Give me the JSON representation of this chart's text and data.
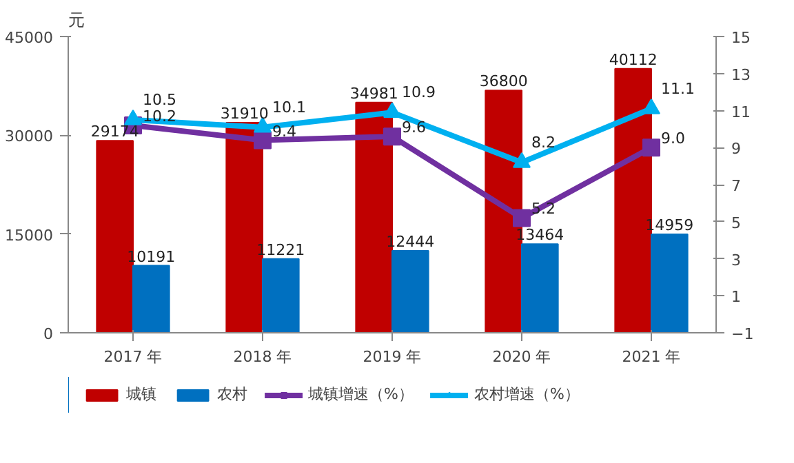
{
  "chart_data": {
    "type": "bar",
    "ylabel": "元",
    "categories": [
      "2017 年",
      "2018 年",
      "2019 年",
      "2020 年",
      "2021 年"
    ],
    "series": [
      {
        "name": "城镇",
        "color": "#c00000",
        "values": [
          29174,
          31910,
          34981,
          36800,
          40112
        ]
      },
      {
        "name": "农村",
        "color": "#0070c0",
        "values": [
          10191,
          11221,
          12444,
          13464,
          14959
        ]
      },
      {
        "name": "城镇增速（%）",
        "type": "line",
        "axis": "y2",
        "marker": "square",
        "color": "#7030a0",
        "values": [
          10.2,
          9.4,
          9.6,
          5.2,
          9.0
        ],
        "value_labels": [
          "10.2",
          "9.4",
          "9.6",
          "5.2",
          "9.0"
        ]
      },
      {
        "name": "农村增速（%）",
        "type": "line",
        "axis": "y2",
        "marker": "triangle",
        "color": "#00b0f0",
        "values": [
          10.5,
          10.1,
          10.9,
          8.2,
          11.1
        ]
      }
    ],
    "ylim": [
      0,
      45000
    ],
    "yticks": [
      0,
      15000,
      30000,
      45000
    ],
    "y2lim": [
      -1,
      15
    ],
    "y2ticks": [
      -1,
      1,
      3,
      5,
      7,
      9,
      11,
      13,
      15
    ],
    "data_labels": true,
    "grid": false,
    "legend": "bottom"
  }
}
